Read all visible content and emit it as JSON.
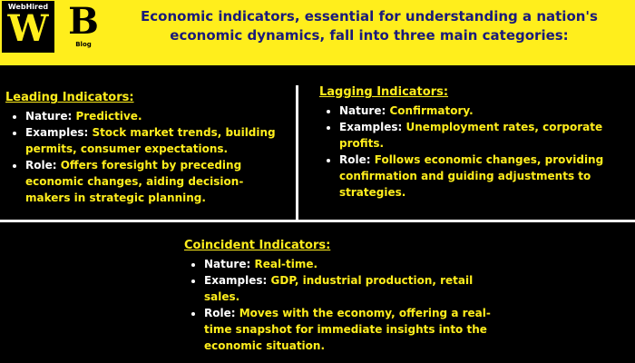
{
  "logo_w": {
    "top_text": "WebHired",
    "letter": "W"
  },
  "logo_b": {
    "letter": "B",
    "sub_text": "Blog"
  },
  "title_line1": "Economic indicators, essential for understanding a nation's",
  "title_line2": "economic dynamics, fall into three main categories:",
  "colors": {
    "accent_yellow": "#ffee1c",
    "title_navy": "#1a1a7a",
    "background": "#000000"
  },
  "leading": {
    "heading": "Leading Indicators:",
    "items": [
      {
        "label": "Nature:",
        "value": "Predictive."
      },
      {
        "label": "Examples:",
        "value": "Stock market trends, building permits, consumer expectations."
      },
      {
        "label": "Role:",
        "value": "Offers foresight by preceding economic changes, aiding decision-makers in strategic planning."
      }
    ]
  },
  "lagging": {
    "heading": "Lagging Indicators:",
    "items": [
      {
        "label": "Nature:",
        "value": "Confirmatory."
      },
      {
        "label": "Examples:",
        "value": "Unemployment rates, corporate profits."
      },
      {
        "label": "Role:",
        "value": "Follows economic changes, providing confirmation and guiding adjustments to strategies."
      }
    ]
  },
  "coincident": {
    "heading": "Coincident Indicators:",
    "items": [
      {
        "label": "Nature:",
        "value": "Real-time."
      },
      {
        "label": "Examples:",
        "value": "GDP, industrial production, retail sales."
      },
      {
        "label": "Role:",
        "value": "Moves with the economy, offering a real-time snapshot for immediate insights into the economic situation."
      }
    ]
  }
}
